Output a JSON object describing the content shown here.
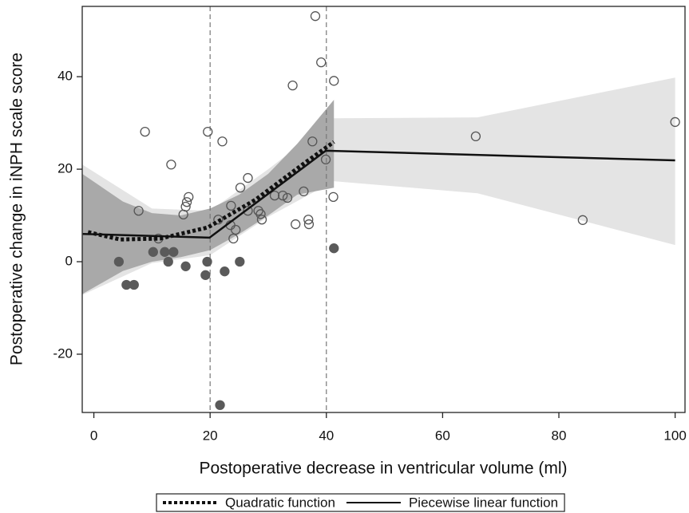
{
  "chart_data": {
    "type": "scatter",
    "xlabel": "Postoperative decrease in ventricular volume (ml)",
    "ylabel": "Postoperative change in iNPH scale score",
    "xlim": [
      -2,
      101.7
    ],
    "ylim": [
      -32.6,
      55.2
    ],
    "xticks": [
      0,
      20,
      40,
      60,
      80,
      100
    ],
    "yticks": [
      -20,
      0,
      20,
      40
    ],
    "vlines": [
      20,
      40
    ],
    "bands": [
      {
        "color": "#e4e4e4",
        "x": [
          -2,
          10,
          20,
          30,
          41.3,
          66,
          100
        ],
        "upper": [
          21,
          11.5,
          11,
          20,
          31,
          31.2,
          39.8
        ],
        "lower": [
          -7.2,
          -0.3,
          1.4,
          9.7,
          17.4,
          14.8,
          3.6
        ]
      },
      {
        "color": "#a9a9a9",
        "x": [
          -2,
          5,
          10,
          15,
          20,
          25,
          30,
          35,
          41.3
        ],
        "upper": [
          19,
          13,
          10.5,
          10,
          11.5,
          14.5,
          19,
          25.5,
          35
        ],
        "lower": [
          -7,
          -2,
          0,
          1,
          2.5,
          6,
          10,
          14.5,
          16
        ]
      }
    ],
    "series": [
      {
        "marker": "open",
        "color": "#555555",
        "x": [
          38.1,
          39.1,
          41.3,
          34.2,
          8.8,
          19.6,
          100,
          65.7,
          22.1,
          37.6,
          13.3,
          39.9,
          26.5,
          25.2,
          16.3,
          16.0,
          15.8,
          7.7,
          15.4,
          41.2,
          36.1,
          32.5,
          31.1,
          33.3,
          23.6,
          26.5,
          28.3,
          28.7,
          28.9,
          21.4,
          36.9,
          37.0,
          34.7,
          84.1,
          23.5,
          24.4,
          24.0,
          11.1
        ],
        "y": [
          53.1,
          43.1,
          39.1,
          38.1,
          28.1,
          28.1,
          30.2,
          27.1,
          26.0,
          26.0,
          21.0,
          22.1,
          18.1,
          16.0,
          14.0,
          12.9,
          11.9,
          11.0,
          10.2,
          14.0,
          15.2,
          14.3,
          14.3,
          13.8,
          12.1,
          11.0,
          11.0,
          10.3,
          9.1,
          9.1,
          9.1,
          8.1,
          8.1,
          9.0,
          7.9,
          6.9,
          5.0,
          5.0
        ]
      },
      {
        "marker": "filled",
        "color": "#5a5a5a",
        "x": [
          4.3,
          10.2,
          12.2,
          13.7,
          12.8,
          15.8,
          19.5,
          19.2,
          22.5,
          25.1,
          5.6,
          6.9,
          41.3,
          21.7
        ],
        "y": [
          0,
          2.1,
          2.1,
          2.1,
          0,
          -1.0,
          0,
          -2.9,
          -2.1,
          0,
          -5.0,
          -5.0,
          2.9,
          -31.0
        ]
      }
    ],
    "lines": [
      {
        "name": "Quadratic function",
        "style": "dotted",
        "color": "#111111",
        "x": [
          -1,
          4.5,
          11.4,
          19.6,
          27.8,
          36.1,
          41.3
        ],
        "y": [
          6.4,
          4.8,
          5.0,
          7.4,
          13.4,
          21.2,
          25.9
        ]
      },
      {
        "name": "Piecewise linear function",
        "style": "solid",
        "color": "#111111",
        "x": [
          -1.9,
          19.9,
          39.9,
          100
        ],
        "y": [
          6.0,
          5.2,
          24.0,
          21.9
        ]
      }
    ],
    "legend": "bottom"
  }
}
